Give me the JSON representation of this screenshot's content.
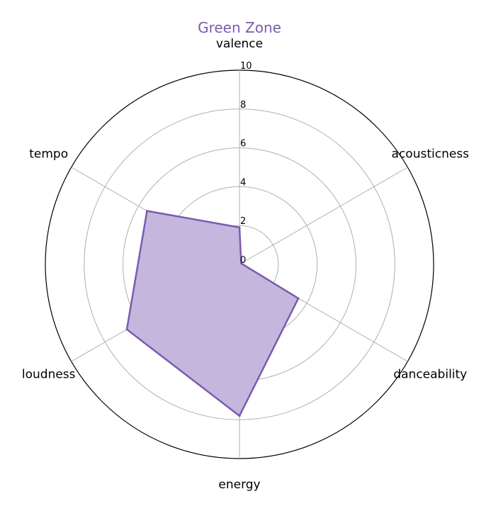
{
  "chart_data": {
    "type": "radar",
    "title": "Green Zone",
    "title_color": "#7a5bb0",
    "axes": [
      "valence",
      "acousticness",
      "danceability",
      "energy",
      "loudness",
      "tempo"
    ],
    "series": [
      {
        "values": [
          1.9,
          0.1,
          3.5,
          7.8,
          6.7,
          5.5
        ],
        "line_color": "#7a5bb0",
        "fill_color": "#c5b6dd"
      }
    ],
    "rlim": [
      0,
      10
    ],
    "rticks": [
      0,
      2,
      4,
      6,
      8,
      10
    ],
    "grid": true
  }
}
